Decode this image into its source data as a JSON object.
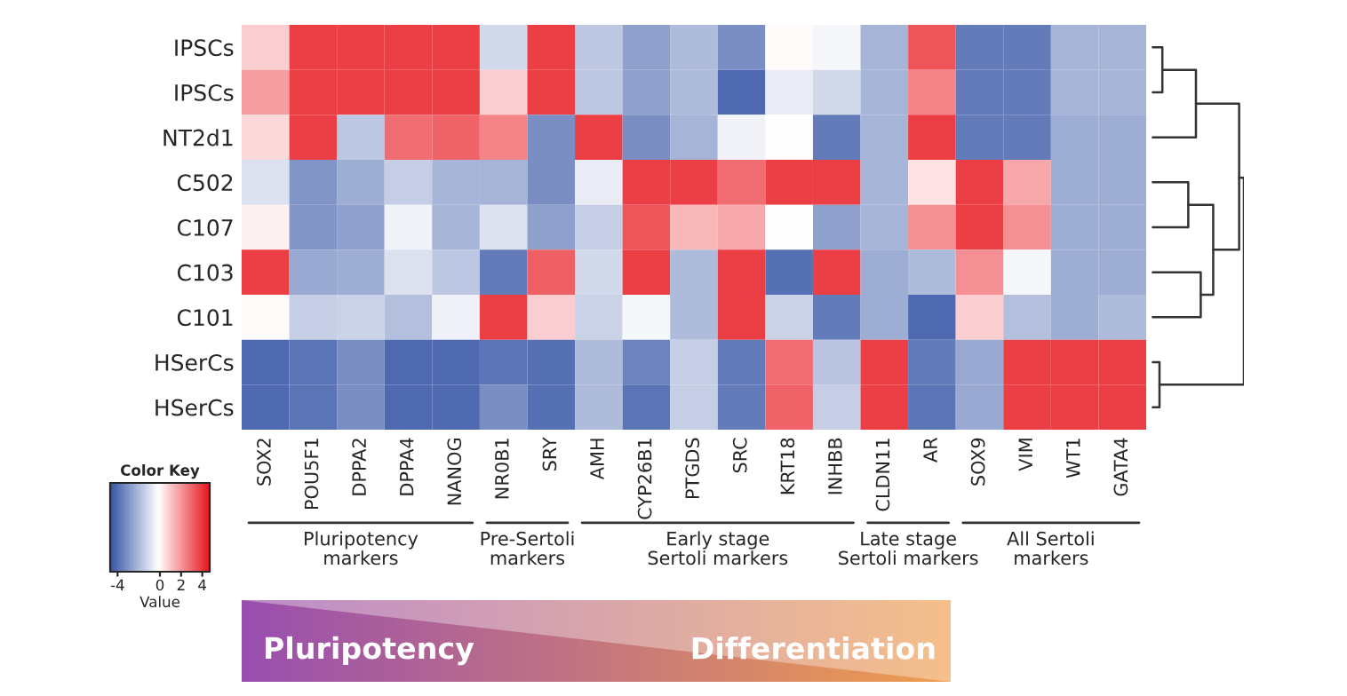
{
  "chart_data": {
    "type": "heatmap",
    "categories": [
      "SOX2",
      "POU5F1",
      "DPPA2",
      "DPPA4",
      "NANOG",
      "NR0B1",
      "SRY",
      "AMH",
      "CYP26B1",
      "PTGDS",
      "SRC",
      "KRT18",
      "INHBB",
      "CLDN11",
      "AR",
      "SOX9",
      "VIM",
      "WT1",
      "GATA4"
    ],
    "y_categories": [
      "IPSCs",
      "IPSCs",
      "NT2d1",
      "C502",
      "C107",
      "C103",
      "C101",
      "HSerCs",
      "HSerCs"
    ],
    "cells": [
      [
        1,
        4,
        4,
        4,
        4,
        -1,
        4,
        -1.5,
        -2.5,
        -1.8,
        -3,
        0.1,
        -0.2,
        -2,
        3.5,
        -3.5,
        -3.5,
        -2,
        -2
      ],
      [
        2,
        4,
        4,
        4,
        4,
        1,
        4,
        -1.5,
        -2.5,
        -1.8,
        -4,
        -0.5,
        -1,
        -2,
        2.5,
        -3.5,
        -3.5,
        -2,
        -2
      ],
      [
        0.8,
        4,
        -1.5,
        3,
        3.2,
        2.5,
        -3,
        4,
        -3,
        -2,
        -0.3,
        0,
        -3.5,
        -2,
        4,
        -3.5,
        -3.5,
        -2.2,
        -2.2
      ],
      [
        -0.8,
        -2.8,
        -2.2,
        -1.3,
        -2,
        -2,
        -3,
        -0.5,
        4,
        4,
        3,
        4,
        4,
        -2,
        0.6,
        4,
        1.8,
        -2.2,
        -2.2
      ],
      [
        0.3,
        -2.8,
        -2.5,
        -0.3,
        -2,
        -0.8,
        -2.5,
        -1.3,
        3.5,
        1.5,
        1.8,
        0,
        -2.5,
        -2,
        2.3,
        4,
        2.3,
        -2.2,
        -2.2
      ],
      [
        4,
        -2.3,
        -2.2,
        -0.8,
        -1.5,
        -3.5,
        3.3,
        -1,
        4,
        -1.8,
        4,
        -3.8,
        4,
        -2.2,
        -1.8,
        2.3,
        -0.2,
        -2.2,
        -2.2
      ],
      [
        0.1,
        -1.3,
        -1.2,
        -1.7,
        -0.4,
        4,
        1,
        -1.2,
        -0.2,
        -1.8,
        4,
        -1.2,
        -3.5,
        -2.2,
        -4,
        1,
        -1.7,
        -2.2,
        -1.8
      ],
      [
        -4,
        -3.7,
        -3,
        -4,
        -4,
        -3.7,
        -3.8,
        -1.8,
        -3.3,
        -1.3,
        -3.5,
        3,
        -1.6,
        4,
        -3.5,
        -2.3,
        4,
        4,
        4
      ],
      [
        -4,
        -3.7,
        -3,
        -4,
        -4,
        -3,
        -3.8,
        -1.8,
        -3.7,
        -1.3,
        -3.5,
        3.2,
        -1.3,
        4,
        -3.7,
        -2.3,
        4,
        4,
        4
      ]
    ],
    "clim": [
      -4.7,
      4.7
    ],
    "cticks": [
      -4,
      0,
      2,
      4
    ],
    "clabel": "Value",
    "annotations": [
      "Color Key",
      "Pluripotency\nmarkers",
      "Pre-Sertoli\nmarkers",
      "Early stage\nSertoli markers",
      "Late stage\nSertoli markers",
      "All Sertoli\nmarkers",
      "Pluripotency",
      "Differentiation"
    ]
  }
}
